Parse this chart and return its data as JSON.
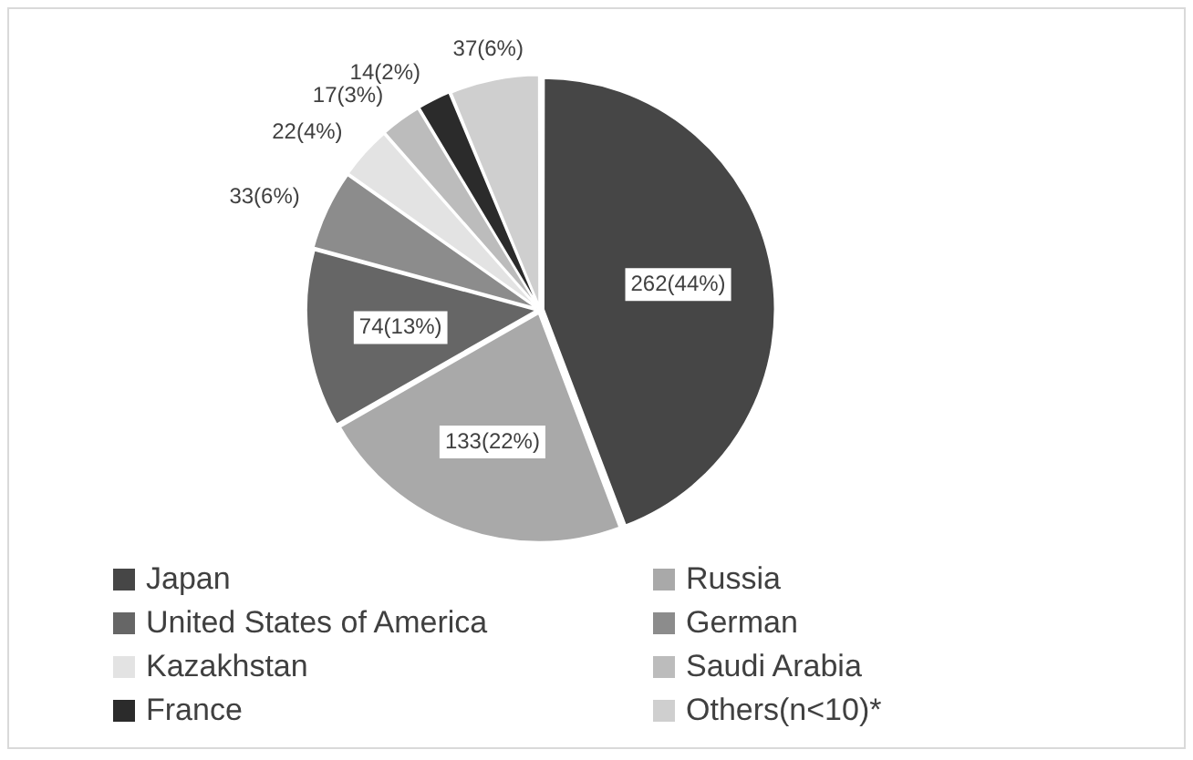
{
  "chart_data": {
    "type": "pie",
    "categories": [
      "Japan",
      "Russia",
      "United States of America",
      "German",
      "Kazakhstan",
      "Saudi Arabia",
      "France",
      "Others(n<10)*"
    ],
    "values": [
      262,
      133,
      74,
      33,
      22,
      17,
      14,
      37
    ],
    "colors": [
      "#464646",
      "#a9a9a9",
      "#666666",
      "#8c8c8c",
      "#e3e3e3",
      "#bcbcbc",
      "#2b2b2b",
      "#cfcfcf"
    ],
    "value_labels": [
      "262(44%)",
      "133(22%)",
      "74(13%)",
      "33(6%)",
      "22(4%)",
      "17(3%)",
      "14(2%)",
      "37(6%)"
    ],
    "legend": "bottom"
  }
}
